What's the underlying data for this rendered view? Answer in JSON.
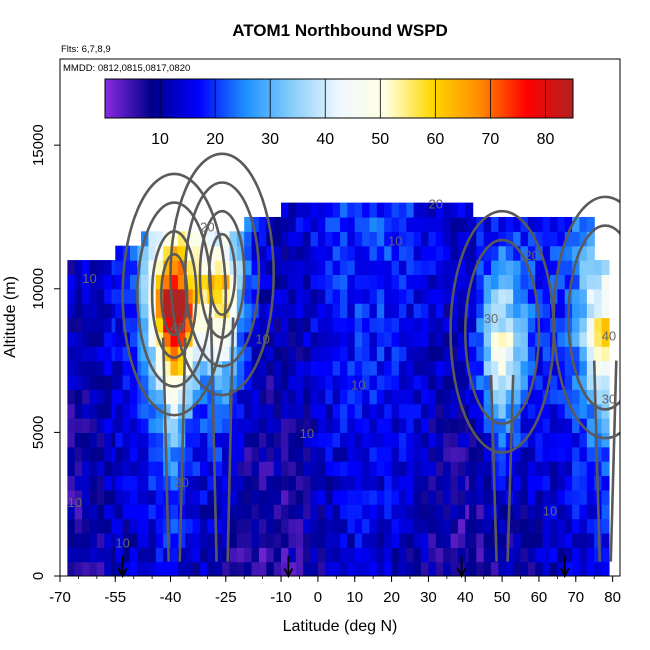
{
  "chart_data": {
    "type": "heatmap",
    "title": "ATOM1 Northbound WSPD",
    "subtitle_lines": [
      "Flts: 6,7,8,9",
      "MMDD: 0812,0815,0817,0820"
    ],
    "xlabel": "Latitude (deg N)",
    "ylabel": "Altitude (m)",
    "xlim": [
      -70,
      82
    ],
    "ylim": [
      0,
      18000
    ],
    "x_ticks": [
      -70,
      -55,
      -40,
      -25,
      -10,
      0,
      10,
      20,
      30,
      40,
      50,
      60,
      70,
      80
    ],
    "y_ticks": [
      0,
      5000,
      10000,
      15000
    ],
    "colorbar": {
      "ticks": [
        10,
        20,
        30,
        40,
        50,
        60,
        70,
        80
      ],
      "range": [
        0,
        85
      ],
      "colors": [
        "#8a2be2",
        "#00008b",
        "#0000ff",
        "#1e90ff",
        "#87cefa",
        "#f0f8ff",
        "#ffffe0",
        "#ffd700",
        "#ff8c00",
        "#ff0000",
        "#b22222"
      ]
    },
    "columns": [
      {
        "lat_min": -68,
        "lat_max": -55,
        "alt_top": 11000
      },
      {
        "lat_min": -55,
        "lat_max": -48,
        "alt_top": 11500
      },
      {
        "lat_min": -48,
        "lat_max": -20,
        "alt_top": 12000
      },
      {
        "lat_min": -20,
        "lat_max": -10,
        "alt_top": 12500
      },
      {
        "lat_min": -10,
        "lat_max": 41,
        "alt_top": 13000
      },
      {
        "lat_min": 41,
        "lat_max": 75,
        "alt_top": 12500
      },
      {
        "lat_min": 75,
        "lat_max": 79,
        "alt_top": 11000
      }
    ],
    "jets": [
      {
        "lat": -39,
        "alt": 9800,
        "peak": 65
      },
      {
        "lat": -26,
        "alt": 10500,
        "peak": 45
      },
      {
        "lat": 50,
        "alt": 8500,
        "peak": 38
      },
      {
        "lat": 78,
        "alt": 9000,
        "peak": 40
      }
    ],
    "contour_labels": [
      {
        "text": "10",
        "lat": -62,
        "alt": 10200
      },
      {
        "text": "10",
        "lat": -66,
        "alt": 2400
      },
      {
        "text": "10",
        "lat": -53,
        "alt": 1000
      },
      {
        "text": "20",
        "lat": -30,
        "alt": 12000
      },
      {
        "text": "40",
        "lat": -38,
        "alt": 8500
      },
      {
        "text": "20",
        "lat": -37,
        "alt": 3100
      },
      {
        "text": "10",
        "lat": -15,
        "alt": 8100
      },
      {
        "text": "10",
        "lat": -3,
        "alt": 4800
      },
      {
        "text": "10",
        "lat": 11,
        "alt": 6500
      },
      {
        "text": "10",
        "lat": 21,
        "alt": 11500
      },
      {
        "text": "20",
        "lat": 32,
        "alt": 12800
      },
      {
        "text": "30",
        "lat": 47,
        "alt": 8800
      },
      {
        "text": "20",
        "lat": 58,
        "alt": 11000
      },
      {
        "text": "10",
        "lat": 63,
        "alt": 2100
      },
      {
        "text": "40",
        "lat": 79,
        "alt": 8200
      },
      {
        "text": "30",
        "lat": 79,
        "alt": 6000
      }
    ],
    "markers": [
      -53,
      -8,
      39,
      67
    ]
  }
}
